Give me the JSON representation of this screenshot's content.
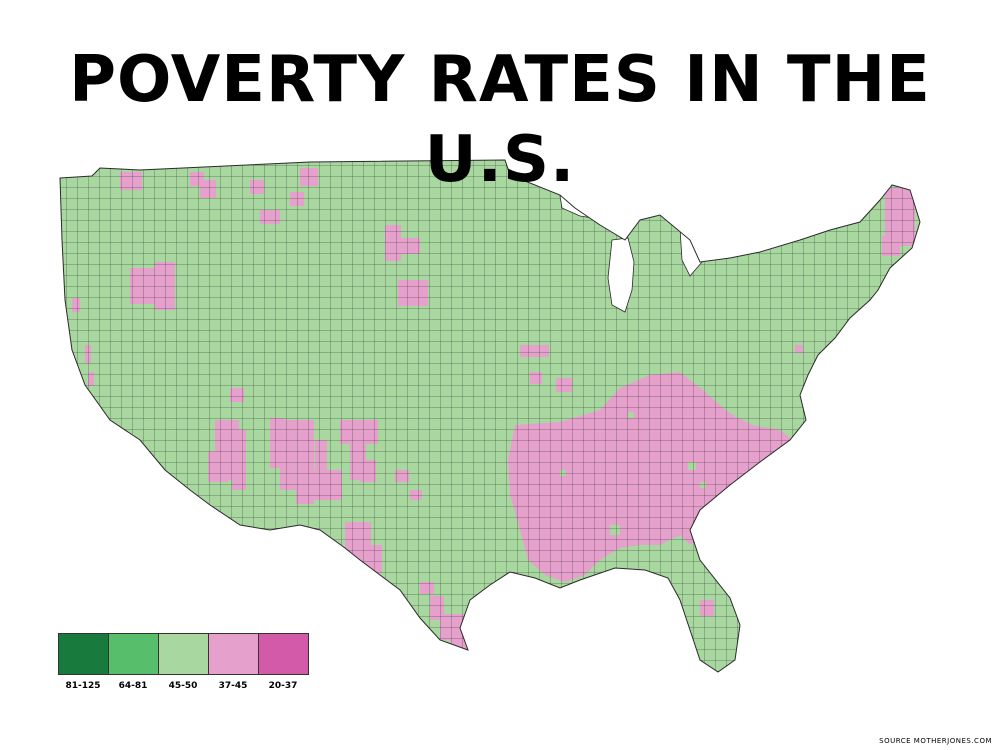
{
  "title": "POVERTY RATES IN THE U.S.",
  "legend": [
    {
      "label": "81-125",
      "color": "#197a3d"
    },
    {
      "label": "64-81",
      "color": "#57be6c"
    },
    {
      "label": "45-50",
      "color": "#a8d8a0"
    },
    {
      "label": "37-45",
      "color": "#e6a0cc"
    },
    {
      "label": "20-37",
      "color": "#d35aa8"
    }
  ],
  "map": {
    "base_category": "45-50",
    "highlight_category": "37-45",
    "border_color": "#2a2a2a"
  },
  "source": "SOURCE MOTHERJONES.COM"
}
